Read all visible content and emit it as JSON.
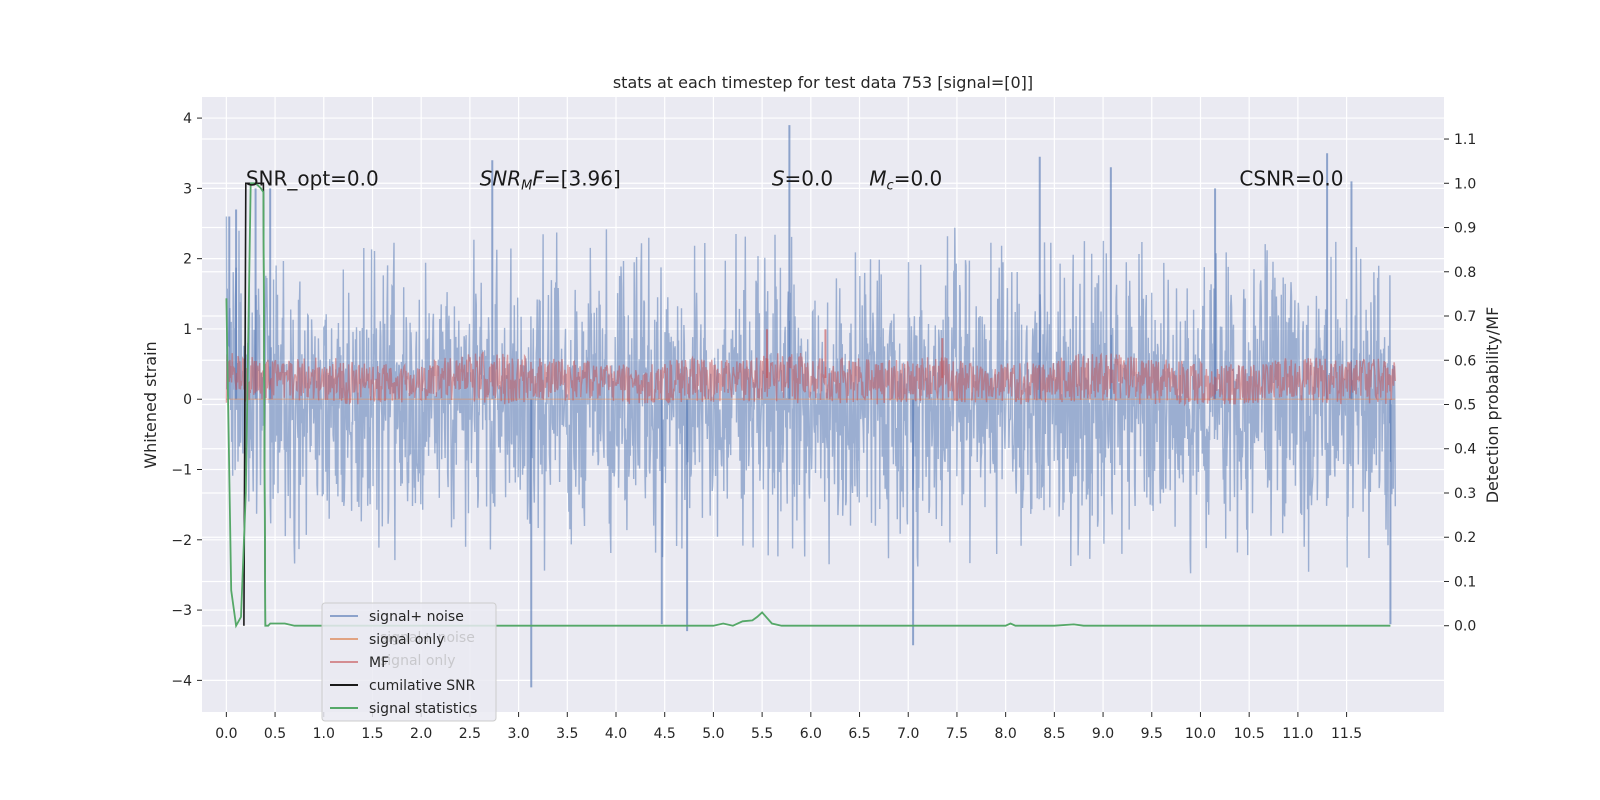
{
  "chart_data": {
    "type": "line",
    "title": "stats at each timestep for test data 753 [signal=[0]]",
    "ylabel": "Whitened strain",
    "y2label": "Detection probability/MF",
    "xlim": [
      -0.25,
      12.5
    ],
    "ylim": [
      -4.45,
      4.3
    ],
    "y2lim": [
      -0.195,
      1.195
    ],
    "x_ticks": [
      "0.0",
      "0.5",
      "1.0",
      "1.5",
      "2.0",
      "2.5",
      "3.0",
      "3.5",
      "4.0",
      "4.5",
      "5.0",
      "5.5",
      "6.0",
      "6.5",
      "7.0",
      "7.5",
      "8.0",
      "8.5",
      "9.0",
      "9.5",
      "10.0",
      "10.5",
      "11.0",
      "11.5"
    ],
    "x_tick_values": [
      0.0,
      0.5,
      1.0,
      1.5,
      2.0,
      2.5,
      3.0,
      3.5,
      4.0,
      4.5,
      5.0,
      5.5,
      6.0,
      6.5,
      7.0,
      7.5,
      8.0,
      8.5,
      9.0,
      9.5,
      10.0,
      10.5,
      11.0,
      11.5
    ],
    "y_ticks": [
      "4",
      "3",
      "2",
      "1",
      "0",
      "−1",
      "−2",
      "−3",
      "−4"
    ],
    "y_tick_values": [
      4,
      3,
      2,
      1,
      0,
      -1,
      -2,
      -3,
      -4
    ],
    "y2_ticks": [
      "1.1",
      "1.0",
      "0.9",
      "0.8",
      "0.7",
      "0.6",
      "0.5",
      "0.4",
      "0.3",
      "0.2",
      "0.1",
      "0.0"
    ],
    "y2_tick_values": [
      1.1,
      1.0,
      0.9,
      0.8,
      0.7,
      0.6,
      0.5,
      0.4,
      0.3,
      0.2,
      0.1,
      0.0
    ],
    "grid": true,
    "legend_placement": "lower-left",
    "annotations": [
      {
        "id": "snr-opt",
        "text": "SNR_opt=0.0",
        "x": 0.2,
        "y2": 1.0
      },
      {
        "id": "snr-mf",
        "text": "SNR",
        "sub": "M",
        "rest": "F=[3.96]",
        "italic": true,
        "x": 2.6,
        "y2": 1.0
      },
      {
        "id": "s-stat",
        "text": "S",
        "rest": "=0.0",
        "italic": true,
        "x": 5.6,
        "y2": 1.0
      },
      {
        "id": "mc-stat",
        "text": "M",
        "sub": "c",
        "rest": "=0.0",
        "italic": true,
        "x": 6.6,
        "y2": 1.0
      },
      {
        "id": "csnr",
        "text": "CSNR=0.0",
        "x": 10.4,
        "y2": 1.0
      }
    ],
    "series": [
      {
        "name": "signal+ noise",
        "color": "#4c72b0",
        "alpha": 0.5,
        "axis": "left",
        "x_range": [
          0.0,
          12.0
        ],
        "envelope_upper": [
          2.6,
          2.2,
          2.3,
          2.1,
          2.2,
          2.3,
          2.1,
          2.4,
          2.2,
          2.5,
          2.3,
          2.1,
          2.2,
          2.4,
          2.3,
          2.5,
          2.2,
          2.3,
          2.1,
          2.2,
          2.4,
          2.3,
          2.6,
          2.2,
          2.1,
          2.3,
          2.2,
          2.2,
          2.4,
          2.5,
          2.3,
          2.2,
          2.1,
          2.3,
          2.3,
          2.2,
          2.4,
          2.6,
          2.3,
          2.2,
          2.4,
          2.3,
          2.5,
          2.4,
          2.3,
          2.2,
          2.3,
          2.4
        ],
        "envelope_lower": [
          -2.0,
          -2.3,
          -2.2,
          -2.4,
          -2.5,
          -2.3,
          -2.6,
          -2.2,
          -2.4,
          -2.3,
          -2.5,
          -2.4,
          -2.2,
          -2.5,
          -2.3,
          -2.4,
          -2.6,
          -2.3,
          -2.2,
          -2.4,
          -2.5,
          -2.3,
          -2.2,
          -2.4,
          -2.3,
          -2.5,
          -2.2,
          -2.3,
          -2.4,
          -2.6,
          -2.3,
          -2.2,
          -2.4,
          -2.3,
          -2.5,
          -2.4,
          -2.2,
          -2.3,
          -2.4,
          -2.5,
          -2.3,
          -2.4,
          -2.2,
          -2.3,
          -2.6,
          -2.4,
          -2.3,
          -2.2
        ],
        "spikes": [
          [
            0.03,
            2.6
          ],
          [
            0.1,
            2.7
          ],
          [
            0.3,
            3.0
          ],
          [
            0.45,
            3.0
          ],
          [
            2.73,
            3.4
          ],
          [
            3.13,
            -4.1
          ],
          [
            4.47,
            -3.2
          ],
          [
            4.73,
            -3.3
          ],
          [
            5.78,
            3.9
          ],
          [
            7.05,
            -3.5
          ],
          [
            8.35,
            3.45
          ],
          [
            9.08,
            3.3
          ],
          [
            10.15,
            3.0
          ],
          [
            11.3,
            3.5
          ],
          [
            11.55,
            3.1
          ],
          [
            11.95,
            -3.2
          ]
        ]
      },
      {
        "name": "signal only",
        "color": "#dd8452",
        "axis": "left",
        "x": [
          0.0,
          12.0
        ],
        "y": [
          0.0,
          0.0
        ]
      },
      {
        "name": "MF",
        "color": "#c44e52",
        "alpha": 0.5,
        "axis": "right",
        "x_range": [
          0.0,
          12.0
        ],
        "envelope_upper": [
          0.62,
          0.6,
          0.61,
          0.59,
          0.6,
          0.62,
          0.61,
          0.6,
          0.59,
          0.61,
          0.6,
          0.62,
          0.61,
          0.6,
          0.61,
          0.59,
          0.6,
          0.62,
          0.61,
          0.6,
          0.59,
          0.61,
          0.6,
          0.61
        ],
        "envelope_lower": [
          0.5,
          0.51,
          0.5,
          0.5,
          0.51,
          0.5,
          0.5,
          0.51,
          0.5,
          0.5,
          0.51,
          0.5,
          0.5,
          0.5,
          0.51,
          0.5,
          0.5,
          0.51,
          0.5,
          0.5,
          0.5,
          0.51,
          0.5,
          0.5
        ],
        "spikes": [
          [
            5.55,
            0.67
          ],
          [
            6.15,
            0.67
          ],
          [
            7.35,
            0.65
          ]
        ]
      },
      {
        "name": "cumilative SNR",
        "color": "#1a1a1a",
        "axis": "right",
        "x": [
          0.18,
          0.2,
          0.38,
          0.4
        ],
        "y": [
          0.0,
          1.0,
          1.0,
          0.0
        ]
      },
      {
        "name": "signal statistics",
        "color": "#55a868",
        "axis": "right",
        "x": [
          0.0,
          0.05,
          0.1,
          0.15,
          0.2,
          0.25,
          0.3,
          0.35,
          0.38,
          0.4,
          0.43,
          0.45,
          0.5,
          0.6,
          0.7,
          1.0,
          2.0,
          3.0,
          4.0,
          4.5,
          5.0,
          5.1,
          5.2,
          5.3,
          5.4,
          5.45,
          5.5,
          5.6,
          5.7,
          6.0,
          7.0,
          8.0,
          8.05,
          8.1,
          8.5,
          8.7,
          8.8,
          9.0,
          9.5,
          10.0,
          11.0,
          11.5,
          11.95
        ],
        "y": [
          0.74,
          0.08,
          0.0,
          0.02,
          0.3,
          1.0,
          1.0,
          0.99,
          0.98,
          0.0,
          0.0,
          0.005,
          0.005,
          0.005,
          0.0,
          0.0,
          0.0,
          0.0,
          0.0,
          0.0,
          0.0,
          0.005,
          0.0,
          0.01,
          0.012,
          0.02,
          0.03,
          0.005,
          0.0,
          0.0,
          0.0,
          0.0,
          0.005,
          0.0,
          0.0,
          0.003,
          0.0,
          0.0,
          0.0,
          0.0,
          0.0,
          0.0,
          0.0
        ]
      }
    ],
    "legend_ghost": [
      {
        "text": "signal+ noise"
      },
      {
        "text": "signal only"
      }
    ]
  }
}
